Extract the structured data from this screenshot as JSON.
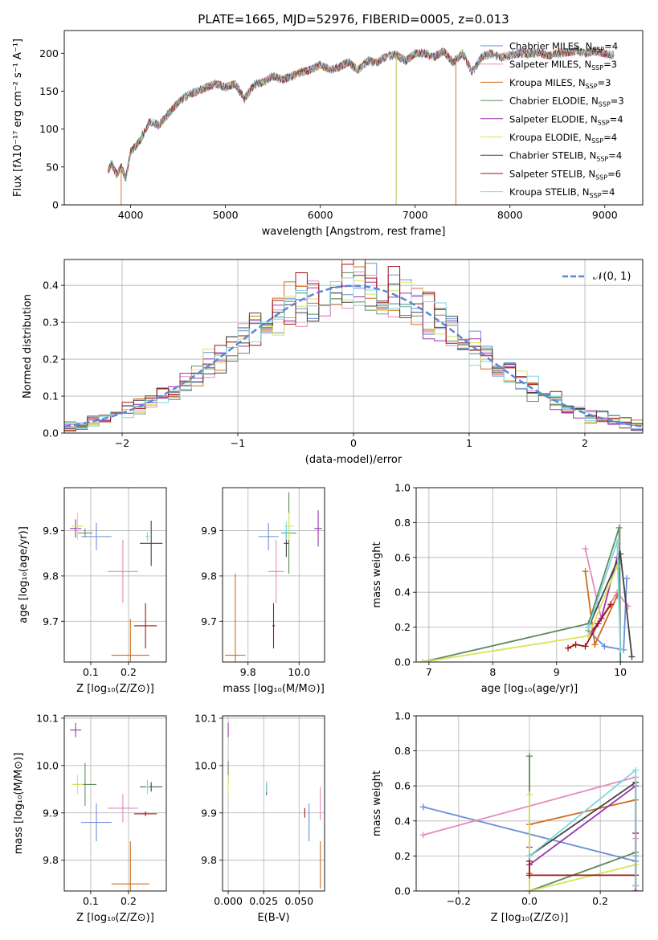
{
  "figure": {
    "title": "PLATE=1665, MJD=52976, FIBERID=0005, z=0.013"
  },
  "chart_data": [
    {
      "id": "spectrum",
      "type": "line",
      "title": "PLATE=1665, MJD=52976, FIBERID=0005, z=0.013",
      "xlabel": "wavelength [Angstrom, rest frame]",
      "ylabel": "Flux [fλ10⁻¹⁷ erg cm⁻² s⁻¹ A⁻¹]",
      "xlim": [
        3300,
        9400
      ],
      "ylim": [
        0,
        230
      ],
      "xticks": [
        "4000",
        "5000",
        "6000",
        "7000",
        "8000",
        "9000"
      ],
      "yticks": [
        "0",
        "50",
        "100",
        "150",
        "200"
      ],
      "grid": false,
      "legend_position": "top-right",
      "continuum": {
        "x": [
          3760,
          3800,
          3850,
          3900,
          3950,
          4000,
          4100,
          4200,
          4300,
          4400,
          4500,
          4600,
          4700,
          4800,
          4900,
          5000,
          5100,
          5200,
          5300,
          5400,
          5500,
          5600,
          5700,
          5800,
          5900,
          6000,
          6100,
          6200,
          6300,
          6400,
          6500,
          6600,
          6700,
          6800,
          6900,
          7000,
          7100,
          7200,
          7300,
          7400,
          7500,
          7600,
          7700,
          7800,
          7900,
          8000,
          8100,
          8200,
          8300,
          8400,
          8500,
          8600,
          8700,
          8800,
          8900,
          9000,
          9100
        ],
        "y": [
          45,
          55,
          40,
          50,
          35,
          70,
          85,
          110,
          105,
          120,
          135,
          145,
          150,
          155,
          160,
          155,
          160,
          140,
          158,
          162,
          170,
          165,
          170,
          175,
          178,
          185,
          178,
          182,
          188,
          178,
          190,
          188,
          196,
          198,
          190,
          200,
          200,
          195,
          203,
          188,
          200,
          175,
          195,
          200,
          195,
          197,
          200,
          199,
          201,
          197,
          200,
          201,
          203,
          200,
          203,
          200,
          197
        ]
      },
      "dropouts": [
        {
          "x": 3900,
          "color": "#dd7722"
        },
        {
          "x": 6800,
          "color": "#b5c44b"
        },
        {
          "x": 7430,
          "color": "#dd7722"
        }
      ],
      "series": [
        {
          "name": "Chabrier MILES, N",
          "sub": "SSP",
          "n": "=4",
          "color": "#6a8ed8"
        },
        {
          "name": "Salpeter MILES, N",
          "sub": "SSP",
          "n": "=3",
          "color": "#e48bbd"
        },
        {
          "name": "Kroupa MILES, N",
          "sub": "SSP",
          "n": "=3",
          "color": "#d06d1c"
        },
        {
          "name": "Chabrier ELODIE, N",
          "sub": "SSP",
          "n": "=3",
          "color": "#5e8a5e"
        },
        {
          "name": "Salpeter ELODIE, N",
          "sub": "SSP",
          "n": "=4",
          "color": "#9934b0"
        },
        {
          "name": "Kroupa ELODIE, N",
          "sub": "SSP",
          "n": "=4",
          "color": "#dbe25a"
        },
        {
          "name": "Chabrier STELIB, N",
          "sub": "SSP",
          "n": "=4",
          "color": "#444444"
        },
        {
          "name": "Salpeter STELIB, N",
          "sub": "SSP",
          "n": "=6",
          "color": "#a01515"
        },
        {
          "name": "Kroupa STELIB, N",
          "sub": "SSP",
          "n": "=4",
          "color": "#7ed7de"
        }
      ]
    },
    {
      "id": "residuals",
      "type": "line",
      "xlabel": "(data-model)/error",
      "ylabel": "Normed distribution",
      "xlim": [
        -2.5,
        2.5
      ],
      "ylim": [
        0,
        0.47
      ],
      "xticks": [
        -2,
        -1,
        0,
        1,
        2
      ],
      "xtick_labels": [
        "−2",
        "−1",
        "0",
        "1",
        "2"
      ],
      "yticks": [
        0.0,
        0.1,
        0.2,
        0.3,
        0.4
      ],
      "ytick_labels": [
        "0.0",
        "0.1",
        "0.2",
        "0.3",
        "0.4"
      ],
      "grid": true,
      "legend_position": "top-right",
      "legend_label": "𝒩(0, 1)",
      "gaussian": {
        "mu": 0,
        "sigma": 1,
        "color": "#5b87d6"
      },
      "histogram": {
        "bin_width": 0.1,
        "x_start": -2.5,
        "colors": [
          "#6a8ed8",
          "#e48bbd",
          "#d06d1c",
          "#5e8a5e",
          "#9934b0",
          "#dbe25a",
          "#444444",
          "#a01515",
          "#7ed7de"
        ]
      }
    },
    {
      "id": "age-vs-z",
      "type": "scatter",
      "xlabel": "Z [log₁₀(Z/Z⊙)]",
      "ylabel": "age  [log₁₀(age/yr)]",
      "xlim": [
        0.03,
        0.3
      ],
      "ylim": [
        9.61,
        9.995
      ],
      "xticks": [
        0.1,
        0.2
      ],
      "xtick_labels": [
        "0.1",
        "0.2"
      ],
      "yticks": [
        9.7,
        9.8,
        9.9
      ],
      "ytick_labels": [
        "9.7",
        "9.8",
        "9.9"
      ],
      "grid": true,
      "points": [
        {
          "x": 0.115,
          "y": 9.887,
          "xerr": 0.04,
          "yerr": 0.03,
          "color": "#6a8ed8"
        },
        {
          "x": 0.185,
          "y": 9.81,
          "xerr": 0.04,
          "yerr": 0.07,
          "color": "#e48bbd"
        },
        {
          "x": 0.205,
          "y": 9.625,
          "xerr": 0.05,
          "yerr": 0.08,
          "color": "#d06d1c"
        },
        {
          "x": 0.085,
          "y": 9.895,
          "xerr": 0.02,
          "yerr": 0.01,
          "color": "#5e8a5e"
        },
        {
          "x": 0.06,
          "y": 9.905,
          "xerr": 0.015,
          "yerr": 0.02,
          "color": "#9934b0"
        },
        {
          "x": 0.065,
          "y": 9.91,
          "xerr": 0.015,
          "yerr": 0.03,
          "color": "#dbe25a"
        },
        {
          "x": 0.26,
          "y": 9.872,
          "xerr": 0.03,
          "yerr": 0.05,
          "color": "#444444"
        },
        {
          "x": 0.245,
          "y": 9.69,
          "xerr": 0.03,
          "yerr": 0.05,
          "color": "#a01515"
        },
        {
          "x": 0.25,
          "y": 9.887,
          "xerr": 0.005,
          "yerr": 0.01,
          "color": "#7ed7de"
        }
      ]
    },
    {
      "id": "age-vs-mass",
      "type": "scatter",
      "xlabel": "mass [log₁₀(M/M⊙)]",
      "ylabel": "",
      "xlim": [
        9.7,
        10.1
      ],
      "ylim": [
        9.61,
        9.995
      ],
      "xticks": [
        9.8,
        10.0
      ],
      "xtick_labels": [
        "9.8",
        "10.0"
      ],
      "yticks": [
        9.7,
        9.8,
        9.9
      ],
      "ytick_labels": [
        "9.7",
        "9.8",
        "9.9"
      ],
      "grid": true,
      "points": [
        {
          "x": 9.88,
          "y": 9.887,
          "xerr": 0.04,
          "yerr": 0.03,
          "color": "#6a8ed8"
        },
        {
          "x": 9.91,
          "y": 9.81,
          "xerr": 0.03,
          "yerr": 0.07,
          "color": "#e48bbd"
        },
        {
          "x": 9.75,
          "y": 9.625,
          "xerr": 0.04,
          "yerr": 0.18,
          "color": "#d06d1c"
        },
        {
          "x": 9.96,
          "y": 9.895,
          "xerr": 0.03,
          "yerr": 0.09,
          "color": "#5e8a5e"
        },
        {
          "x": 10.075,
          "y": 9.905,
          "xerr": 0.015,
          "yerr": 0.04,
          "color": "#9934b0"
        },
        {
          "x": 9.96,
          "y": 9.91,
          "xerr": 0.02,
          "yerr": 0.03,
          "color": "#dbe25a"
        },
        {
          "x": 9.95,
          "y": 9.872,
          "xerr": 0.01,
          "yerr": 0.03,
          "color": "#444444"
        },
        {
          "x": 9.9,
          "y": 9.69,
          "xerr": 0.005,
          "yerr": 0.05,
          "color": "#a01515"
        },
        {
          "x": 9.95,
          "y": 9.9,
          "xerr": 0.02,
          "yerr": 0.02,
          "color": "#7ed7de"
        }
      ]
    },
    {
      "id": "weight-vs-age",
      "type": "line",
      "xlabel": "age  [log₁₀(age/yr)]",
      "ylabel": "mass weight",
      "xlim": [
        6.8,
        10.35
      ],
      "ylim": [
        0,
        1.0
      ],
      "xticks": [
        7,
        8,
        9,
        10
      ],
      "xtick_labels": [
        "7",
        "8",
        "9",
        "10"
      ],
      "yticks": [
        0.0,
        0.2,
        0.4,
        0.6,
        0.8,
        1.0
      ],
      "ytick_labels": [
        "0.0",
        "0.2",
        "0.4",
        "0.6",
        "0.8",
        "1.0"
      ],
      "grid": true,
      "series": [
        {
          "color": "#6a8ed8",
          "x": [
            9.5,
            9.75,
            10.05,
            10.1
          ],
          "y": [
            0.18,
            0.09,
            0.07,
            0.48
          ]
        },
        {
          "color": "#e48bbd",
          "x": [
            9.45,
            9.7,
            9.95,
            10.12
          ],
          "y": [
            0.65,
            0.25,
            0.4,
            0.32
          ]
        },
        {
          "color": "#d06d1c",
          "x": [
            9.45,
            9.6,
            9.95
          ],
          "y": [
            0.52,
            0.1,
            0.38
          ]
        },
        {
          "color": "#5e8a5e",
          "x": [
            6.9,
            9.5,
            9.98,
            10.0
          ],
          "y": [
            0.0,
            0.22,
            0.77,
            0.0
          ]
        },
        {
          "color": "#9934b0",
          "x": [
            9.5,
            9.7,
            9.95
          ],
          "y": [
            0.15,
            0.25,
            0.6
          ]
        },
        {
          "color": "#dbe25a",
          "x": [
            6.9,
            9.5,
            9.95
          ],
          "y": [
            0.0,
            0.15,
            0.55
          ]
        },
        {
          "color": "#444444",
          "x": [
            9.5,
            10.0,
            10.18
          ],
          "y": [
            0.2,
            0.62,
            0.03
          ]
        },
        {
          "color": "#a01515",
          "x": [
            9.18,
            9.3,
            9.45,
            9.65,
            9.85
          ],
          "y": [
            0.08,
            0.1,
            0.09,
            0.22,
            0.33
          ]
        },
        {
          "color": "#7ed7de",
          "x": [
            9.5,
            9.95,
            10.0
          ],
          "y": [
            0.2,
            0.69,
            0.07
          ]
        }
      ]
    },
    {
      "id": "mass-vs-z",
      "type": "scatter",
      "xlabel": "Z [log₁₀(Z/Z⊙)]",
      "ylabel": "mass [log₁₀(M/M⊙)]",
      "xlim": [
        0.03,
        0.3
      ],
      "ylim": [
        9.735,
        10.105
      ],
      "xticks": [
        0.1,
        0.2
      ],
      "xtick_labels": [
        "0.1",
        "0.2"
      ],
      "yticks": [
        9.8,
        9.9,
        10.0,
        10.1
      ],
      "ytick_labels": [
        "9.8",
        "9.9",
        "10.0",
        "10.1"
      ],
      "grid": true,
      "points": [
        {
          "x": 0.115,
          "y": 9.88,
          "xerr": 0.04,
          "yerr": 0.04,
          "color": "#6a8ed8"
        },
        {
          "x": 0.185,
          "y": 9.91,
          "xerr": 0.04,
          "yerr": 0.03,
          "color": "#e48bbd"
        },
        {
          "x": 0.205,
          "y": 9.75,
          "xerr": 0.05,
          "yerr": 0.09,
          "color": "#d06d1c"
        },
        {
          "x": 0.085,
          "y": 9.96,
          "xerr": 0.03,
          "yerr": 0.045,
          "color": "#5e8a5e"
        },
        {
          "x": 0.06,
          "y": 10.075,
          "xerr": 0.015,
          "yerr": 0.015,
          "color": "#9934b0"
        },
        {
          "x": 0.065,
          "y": 9.96,
          "xerr": 0.015,
          "yerr": 0.02,
          "color": "#dbe25a"
        },
        {
          "x": 0.26,
          "y": 9.955,
          "xerr": 0.03,
          "yerr": 0.01,
          "color": "#444444"
        },
        {
          "x": 0.245,
          "y": 9.898,
          "xerr": 0.03,
          "yerr": 0.005,
          "color": "#a01515"
        },
        {
          "x": 0.25,
          "y": 9.955,
          "xerr": 0.005,
          "yerr": 0.015,
          "color": "#7ed7de"
        }
      ]
    },
    {
      "id": "mass-vs-ebv",
      "type": "scatter",
      "xlabel": "E(B-V)",
      "ylabel": "",
      "xlim": [
        -0.004,
        0.068
      ],
      "ylim": [
        9.735,
        10.105
      ],
      "xticks": [
        0.0,
        0.025,
        0.05
      ],
      "xtick_labels": [
        "0.000",
        "0.025",
        "0.050"
      ],
      "yticks": [
        9.8,
        9.9,
        10.0,
        10.1
      ],
      "ytick_labels": [
        "9.8",
        "9.9",
        "10.0",
        "10.1"
      ],
      "grid": true,
      "points": [
        {
          "x": 0.057,
          "y": 9.88,
          "xerr": 0.0,
          "yerr": 0.04,
          "color": "#6a8ed8"
        },
        {
          "x": 0.065,
          "y": 9.92,
          "xerr": 0.0,
          "yerr": 0.035,
          "color": "#e48bbd"
        },
        {
          "x": 0.065,
          "y": 9.79,
          "xerr": 0.0,
          "yerr": 0.05,
          "color": "#d06d1c"
        },
        {
          "x": 0.0,
          "y": 9.985,
          "xerr": 0.0,
          "yerr": 0.025,
          "color": "#5e8a5e"
        },
        {
          "x": 0.0,
          "y": 10.075,
          "xerr": 0.0,
          "yerr": 0.015,
          "color": "#9934b0"
        },
        {
          "x": 0.0,
          "y": 9.96,
          "xerr": 0.0,
          "yerr": 0.02,
          "color": "#dbe25a"
        },
        {
          "x": 0.027,
          "y": 9.95,
          "xerr": 0.0,
          "yerr": 0.012,
          "color": "#444444"
        },
        {
          "x": 0.054,
          "y": 9.9,
          "xerr": 0.0,
          "yerr": 0.01,
          "color": "#a01515"
        },
        {
          "x": 0.027,
          "y": 9.955,
          "xerr": 0.0,
          "yerr": 0.012,
          "color": "#7ed7de"
        }
      ]
    },
    {
      "id": "weight-vs-z",
      "type": "line",
      "xlabel": "Z [log₁₀(Z/Z⊙)]",
      "ylabel": "mass weight",
      "xlim": [
        -0.32,
        0.32
      ],
      "ylim": [
        0,
        1.0
      ],
      "xticks": [
        -0.2,
        0.0,
        0.2
      ],
      "xtick_labels": [
        "−0.2",
        "0.0",
        "0.2"
      ],
      "yticks": [
        0.0,
        0.2,
        0.4,
        0.6,
        0.8,
        1.0
      ],
      "ytick_labels": [
        "0.0",
        "0.2",
        "0.4",
        "0.6",
        "0.8",
        "1.0"
      ],
      "grid": true,
      "series": [
        {
          "color": "#6a8ed8",
          "x": [
            -0.3,
            0.3,
            0.3
          ],
          "y": [
            0.48,
            0.17,
            0.2
          ]
        },
        {
          "color": "#e48bbd",
          "x": [
            -0.3,
            0.3,
            0.3
          ],
          "y": [
            0.32,
            0.65,
            0.3
          ]
        },
        {
          "color": "#d06d1c",
          "x": [
            0.0,
            0.0,
            0.3,
            0.3
          ],
          "y": [
            0.1,
            0.38,
            0.52,
            0.0
          ]
        },
        {
          "color": "#5e8a5e",
          "x": [
            0.0,
            0.0,
            0.3
          ],
          "y": [
            0.77,
            0.0,
            0.22
          ]
        },
        {
          "color": "#9934b0",
          "x": [
            0.0,
            0.0,
            0.3,
            0.3
          ],
          "y": [
            0.25,
            0.15,
            0.6,
            0.0
          ]
        },
        {
          "color": "#dbe25a",
          "x": [
            0.0,
            0.0,
            0.3
          ],
          "y": [
            0.55,
            0.0,
            0.15
          ]
        },
        {
          "color": "#444444",
          "x": [
            0.0,
            0.3,
            0.3
          ],
          "y": [
            0.2,
            0.62,
            0.03
          ]
        },
        {
          "color": "#a01515",
          "x": [
            0.0,
            0.0,
            0.3,
            0.3
          ],
          "y": [
            0.17,
            0.09,
            0.09,
            0.33
          ]
        },
        {
          "color": "#7ed7de",
          "x": [
            0.0,
            0.3,
            0.3
          ],
          "y": [
            0.2,
            0.69,
            0.03
          ]
        }
      ]
    }
  ]
}
